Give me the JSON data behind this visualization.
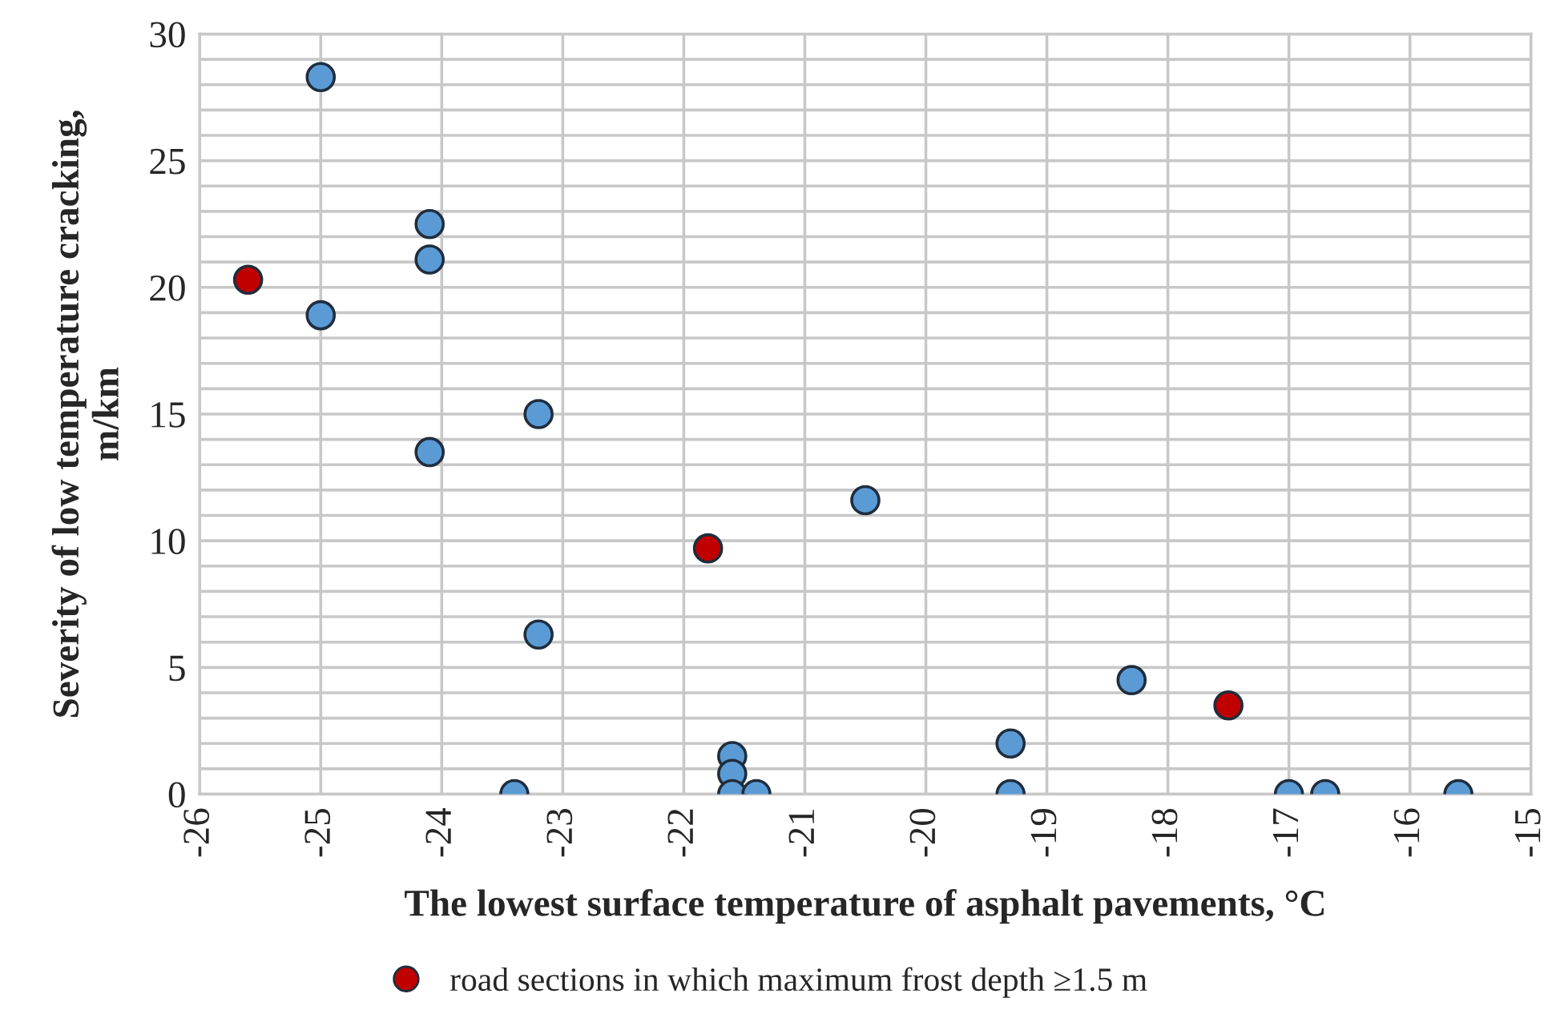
{
  "chart_data": {
    "type": "scatter",
    "xlabel": "The lowest surface temperature of asphalt pavements, °C",
    "ylabel": "Severity of low temperature cracking,\nm/km",
    "series": [
      {
        "color": "#5b9bd5",
        "x": [
          -25.0,
          -24.1,
          -24.1,
          -25.0,
          -23.2,
          -24.1,
          -20.5,
          -23.2,
          -21.6,
          -21.6,
          -21.6,
          -21.4,
          -23.4,
          -19.3,
          -19.3,
          -18.3,
          -17.0,
          -16.7,
          -15.6
        ],
        "values": [
          28.3,
          22.5,
          21.1,
          18.9,
          15.0,
          13.5,
          11.6,
          6.3,
          1.5,
          0.8,
          0,
          0,
          0,
          2.0,
          0,
          4.5,
          0,
          0,
          0
        ]
      },
      {
        "name": "road sections in which maximum frost depth ≥1.5 m",
        "color": "#c00000",
        "x": [
          -25.6,
          -21.8,
          -17.5
        ],
        "values": [
          20.3,
          9.7,
          3.5
        ]
      }
    ],
    "xlim": [
      -26,
      -15
    ],
    "xticks": [
      -26,
      -25,
      -24,
      -23,
      -22,
      -21,
      -20,
      -19,
      -18,
      -17,
      -16,
      -15
    ],
    "ylim": [
      0,
      30
    ],
    "yticks": [
      0,
      {
        "value": 1,
        "label": null
      },
      {
        "value": 2,
        "label": null
      },
      {
        "value": 3,
        "label": null
      },
      {
        "value": 4,
        "label": null
      },
      5,
      {
        "value": 6,
        "label": null
      },
      {
        "value": 7,
        "label": null
      },
      {
        "value": 8,
        "label": null
      },
      {
        "value": 9,
        "label": null
      },
      10,
      {
        "value": 11,
        "label": null
      },
      {
        "value": 12,
        "label": null
      },
      {
        "value": 13,
        "label": null
      },
      {
        "value": 14,
        "label": null
      },
      15,
      {
        "value": 16,
        "label": null
      },
      {
        "value": 17,
        "label": null
      },
      {
        "value": 18,
        "label": null
      },
      {
        "value": 19,
        "label": null
      },
      20,
      {
        "value": 21,
        "label": null
      },
      {
        "value": 22,
        "label": null
      },
      {
        "value": 23,
        "label": null
      },
      {
        "value": 24,
        "label": null
      },
      25,
      {
        "value": 26,
        "label": null
      },
      {
        "value": 27,
        "label": null
      },
      {
        "value": 28,
        "label": null
      },
      {
        "value": 29,
        "label": null
      },
      30
    ],
    "grid": true,
    "legend": "bottom",
    "marker": "circle"
  }
}
